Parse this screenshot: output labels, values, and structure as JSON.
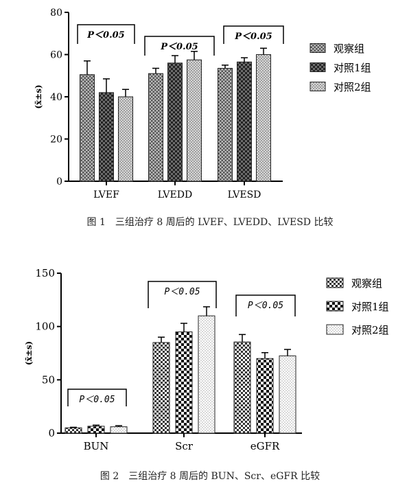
{
  "figures": [
    {
      "caption": "图 1　三组治疗 8 周后的 LVEF、LVEDD、LVESD 比较"
    },
    {
      "caption": "图 2　三组治疗 8 周后的 BUN、Scr、eGFR 比较"
    }
  ],
  "chart_data": [
    {
      "type": "bar",
      "ylabel": "(x̄±s)",
      "ylim": [
        0,
        80
      ],
      "yticks": [
        "0",
        "20",
        "40",
        "60",
        "80"
      ],
      "categories": [
        "LVEF",
        "LVEDD",
        "LVESD"
      ],
      "series": [
        {
          "name": "观察组",
          "values": [
            50.5,
            51,
            53.5
          ],
          "errors": [
            6.5,
            2.5,
            1.5
          ]
        },
        {
          "name": "对照1组",
          "values": [
            42,
            56,
            56.5
          ],
          "errors": [
            6.5,
            3.5,
            2
          ]
        },
        {
          "name": "对照2组",
          "values": [
            40,
            57.5,
            60
          ],
          "errors": [
            3.5,
            4,
            3
          ]
        }
      ],
      "annotations": [
        "P＜0.05",
        "P＜0.05",
        "P＜0.05"
      ],
      "legend": "right",
      "grid": false
    },
    {
      "type": "bar",
      "ylabel": "(x̄±s)",
      "ylim": [
        0,
        150
      ],
      "yticks": [
        "0",
        "50",
        "100",
        "150"
      ],
      "categories": [
        "BUN",
        "Scr",
        "eGFR"
      ],
      "series": [
        {
          "name": "观察组",
          "values": [
            5,
            85,
            85.5
          ],
          "errors": [
            0.5,
            5,
            7
          ]
        },
        {
          "name": "对照1组",
          "values": [
            6.5,
            95,
            70
          ],
          "errors": [
            1,
            8,
            5.5
          ]
        },
        {
          "name": "对照2组",
          "values": [
            6,
            110,
            72.5
          ],
          "errors": [
            1,
            8.5,
            6
          ]
        }
      ],
      "annotations": [
        "P＜0.05",
        "P＜0.05",
        "P＜0.05"
      ],
      "legend": "right",
      "grid": false
    }
  ]
}
